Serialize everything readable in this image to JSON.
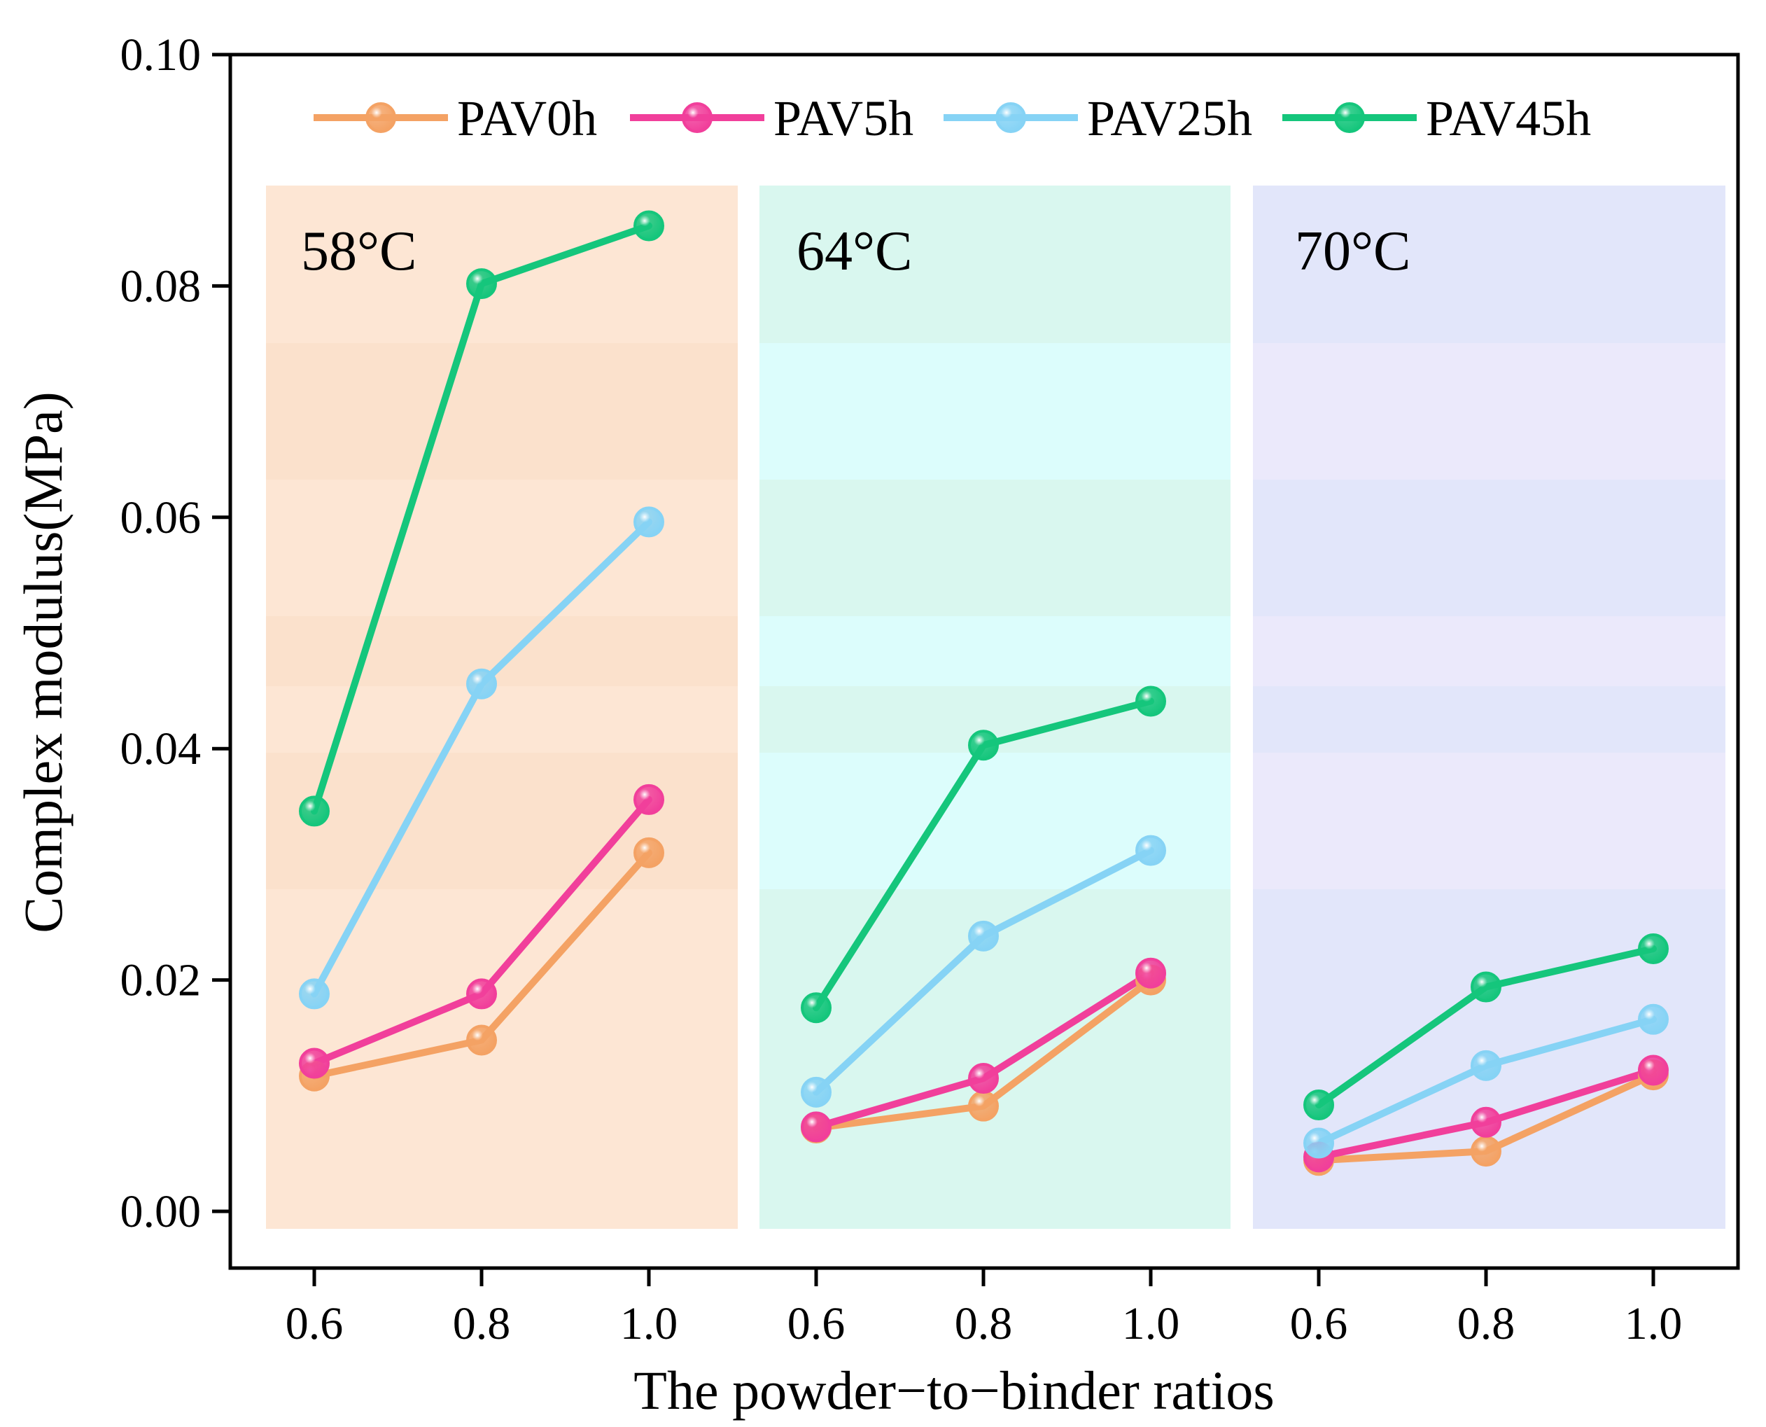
{
  "chart_data": {
    "type": "line",
    "xlabel": "The powder−to−binder ratios",
    "ylabel": "Complex modulus(MPa)",
    "ylim": [
      0.0,
      0.1
    ],
    "yticks": [
      "0.00",
      "0.02",
      "0.04",
      "0.06",
      "0.08",
      "0.10"
    ],
    "ytick_values": [
      0.0,
      0.02,
      0.04,
      0.06,
      0.08,
      0.1
    ],
    "categories": [
      "0.6",
      "0.8",
      "1.0"
    ],
    "legend_position": "top",
    "groups": [
      {
        "label": "58°C",
        "bg_color": "#fde6d4",
        "band_color": "#fbe1cc"
      },
      {
        "label": "64°C",
        "bg_color": "#d9f7ef",
        "band_color": "#dcfdfc"
      },
      {
        "label": "70°C",
        "bg_color": "#e2e6fa",
        "band_color": "#ebe9fb"
      }
    ],
    "series": [
      {
        "name": "PAV0h",
        "color": "#f4a264",
        "values": [
          [
            0.0117,
            0.0148,
            0.031
          ],
          [
            0.0072,
            0.0091,
            0.02
          ],
          [
            0.0044,
            0.0052,
            0.0118
          ]
        ]
      },
      {
        "name": "PAV5h",
        "color": "#f13f9b",
        "values": [
          [
            0.0128,
            0.0188,
            0.0356
          ],
          [
            0.0073,
            0.0115,
            0.0206
          ],
          [
            0.0047,
            0.0077,
            0.0122
          ]
        ]
      },
      {
        "name": "PAV25h",
        "color": "#86d3f5",
        "values": [
          [
            0.0188,
            0.0456,
            0.0596
          ],
          [
            0.0103,
            0.0238,
            0.0312
          ],
          [
            0.0059,
            0.0126,
            0.0166
          ]
        ]
      },
      {
        "name": "PAV45h",
        "color": "#15c67c",
        "values": [
          [
            0.0346,
            0.0802,
            0.0852
          ],
          [
            0.0176,
            0.0403,
            0.0441
          ],
          [
            0.0092,
            0.0194,
            0.0227
          ]
        ]
      }
    ]
  }
}
